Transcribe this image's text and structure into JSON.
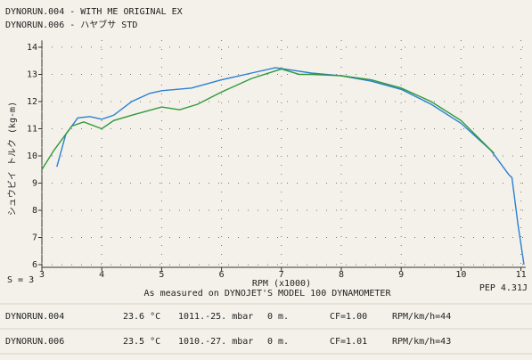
{
  "chart_data": {
    "type": "line",
    "x_label": "RPM (x1000)",
    "y_label": "シュウビイ トルク (kg-m)",
    "xlim": [
      3,
      11.1
    ],
    "xticks": [
      3,
      4,
      5,
      6,
      7,
      8,
      9,
      10,
      11
    ],
    "ylim": [
      6,
      14
    ],
    "yticks": [
      6,
      7,
      8,
      9,
      10,
      11,
      12,
      13,
      14
    ],
    "grid": true,
    "series": [
      {
        "name": "DYNORUN.004 - WITH ME ORIGINAL EX",
        "color": "#2a7fd4",
        "x": [
          3.25,
          3.4,
          3.6,
          3.8,
          4.0,
          4.2,
          4.5,
          4.8,
          5.0,
          5.5,
          6.0,
          6.5,
          6.9,
          7.2,
          7.5,
          8.0,
          8.5,
          9.0,
          9.5,
          10.0,
          10.5,
          10.8,
          10.85,
          10.95,
          11.05
        ],
        "values": [
          9.6,
          10.8,
          11.4,
          11.45,
          11.35,
          11.5,
          12.0,
          12.3,
          12.4,
          12.5,
          12.8,
          13.05,
          13.25,
          13.15,
          13.05,
          12.95,
          12.75,
          12.45,
          11.9,
          11.2,
          10.2,
          9.3,
          9.2,
          7.5,
          6.0
        ]
      },
      {
        "name": "DYNORUN.006 - ハヤブサ STD",
        "color": "#2e9a3a",
        "x": [
          3.0,
          3.2,
          3.5,
          3.7,
          4.0,
          4.2,
          4.5,
          5.0,
          5.3,
          5.6,
          6.0,
          6.5,
          7.0,
          7.3,
          7.5,
          8.0,
          8.5,
          9.0,
          9.5,
          10.0,
          10.55
        ],
        "values": [
          9.5,
          10.2,
          11.1,
          11.25,
          11.0,
          11.3,
          11.5,
          11.8,
          11.7,
          11.9,
          12.35,
          12.85,
          13.2,
          13.0,
          13.0,
          12.95,
          12.8,
          12.5,
          12.0,
          11.3,
          10.1
        ]
      }
    ],
    "smoothing": "S = 3",
    "note": "As measured on DYNOJET'S MODEL 100 DYNAMOMETER",
    "version": "PEP 4.31J"
  },
  "footer": {
    "runs": [
      {
        "color": "#2a7fd4",
        "cells": [
          "DYNORUN.004",
          "23.6 °C",
          "1011.-25. mbar",
          "0 m.",
          "CF=1.00",
          "RPM/km/h=44"
        ]
      },
      {
        "color": "#2e9a3a",
        "cells": [
          "DYNORUN.006",
          "23.5 °C",
          "1010.-27. mbar",
          "0 m.",
          "CF=1.01",
          "RPM/km/h=43"
        ]
      }
    ]
  }
}
